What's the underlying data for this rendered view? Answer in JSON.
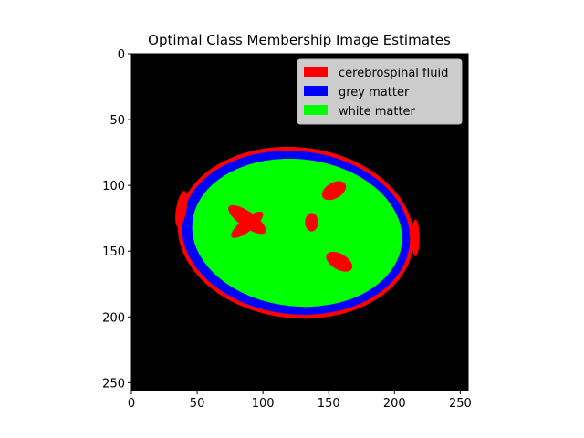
{
  "chart_data": {
    "type": "heatmap",
    "title": "Optimal Class Membership Image Estimates",
    "xlabel": "",
    "ylabel": "",
    "xlim": [
      0,
      256
    ],
    "ylim": [
      256,
      0
    ],
    "x_ticks": [
      0,
      50,
      100,
      150,
      200,
      250
    ],
    "y_ticks": [
      0,
      50,
      100,
      150,
      200,
      250
    ],
    "background_color": "#000000",
    "legend": {
      "placement": "top-right",
      "entries": [
        {
          "label": "cerebrospinal fluid",
          "color": "#ff0000"
        },
        {
          "label": "grey matter",
          "color": "#0000ff"
        },
        {
          "label": "white matter",
          "color": "#00ff00"
        }
      ]
    },
    "regions": [
      {
        "class": "cerebrospinal fluid",
        "shape": "ellipse",
        "cx": 125,
        "cy": 136,
        "rx": 90,
        "ry": 65,
        "rot": 6
      },
      {
        "class": "grey matter",
        "shape": "ellipse",
        "cx": 125,
        "cy": 136,
        "rx": 87,
        "ry": 62,
        "rot": 6
      },
      {
        "class": "white matter",
        "shape": "ellipse",
        "cx": 126,
        "cy": 136,
        "rx": 80,
        "ry": 56,
        "rot": 6
      },
      {
        "class": "cerebrospinal fluid",
        "shape": "ellipse",
        "cx": 88,
        "cy": 126,
        "rx": 17,
        "ry": 6,
        "rot": 35
      },
      {
        "class": "cerebrospinal fluid",
        "shape": "ellipse",
        "cx": 88,
        "cy": 130,
        "rx": 15,
        "ry": 5,
        "rot": -38
      },
      {
        "class": "cerebrospinal fluid",
        "shape": "ellipse",
        "cx": 154,
        "cy": 104,
        "rx": 10,
        "ry": 6,
        "rot": -30
      },
      {
        "class": "cerebrospinal fluid",
        "shape": "ellipse",
        "cx": 158,
        "cy": 158,
        "rx": 11,
        "ry": 6,
        "rot": 30
      },
      {
        "class": "cerebrospinal fluid",
        "shape": "ellipse",
        "cx": 137,
        "cy": 128,
        "rx": 5,
        "ry": 7,
        "rot": 0
      },
      {
        "class": "cerebrospinal fluid",
        "shape": "ellipse",
        "cx": 38,
        "cy": 118,
        "rx": 4,
        "ry": 14,
        "rot": 10
      },
      {
        "class": "cerebrospinal fluid",
        "shape": "ellipse",
        "cx": 216,
        "cy": 140,
        "rx": 3,
        "ry": 14,
        "rot": 0
      }
    ]
  }
}
